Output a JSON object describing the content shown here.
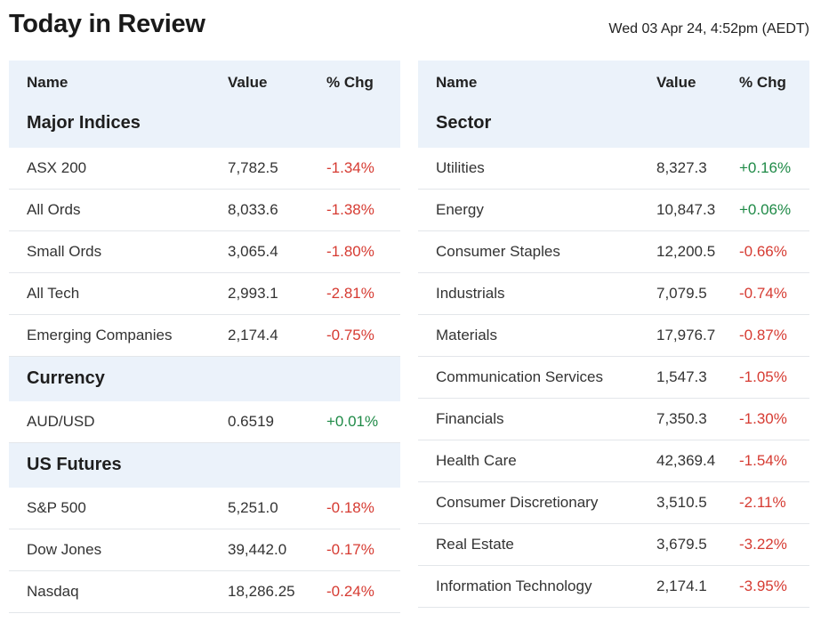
{
  "title": "Today in Review",
  "timestamp": "Wed 03 Apr 24, 4:52pm (AEDT)",
  "left": {
    "headers": {
      "name": "Name",
      "value": "Value",
      "chg": "% Chg"
    },
    "groups": [
      {
        "title": "Major Indices",
        "rows": [
          {
            "name": "ASX 200",
            "value": "7,782.5",
            "chg": "-1.34%"
          },
          {
            "name": "All Ords",
            "value": "8,033.6",
            "chg": "-1.38%"
          },
          {
            "name": "Small Ords",
            "value": "3,065.4",
            "chg": "-1.80%"
          },
          {
            "name": "All Tech",
            "value": "2,993.1",
            "chg": "-2.81%"
          },
          {
            "name": "Emerging Companies",
            "value": "2,174.4",
            "chg": "-0.75%"
          }
        ]
      },
      {
        "title": "Currency",
        "rows": [
          {
            "name": "AUD/USD",
            "value": "0.6519",
            "chg": "+0.01%"
          }
        ]
      },
      {
        "title": "US Futures",
        "rows": [
          {
            "name": "S&P 500",
            "value": "5,251.0",
            "chg": "-0.18%"
          },
          {
            "name": "Dow Jones",
            "value": "39,442.0",
            "chg": "-0.17%"
          },
          {
            "name": "Nasdaq",
            "value": "18,286.25",
            "chg": "-0.24%"
          }
        ]
      }
    ]
  },
  "right": {
    "headers": {
      "name": "Name",
      "value": "Value",
      "chg": "% Chg"
    },
    "groups": [
      {
        "title": "Sector",
        "rows": [
          {
            "name": "Utilities",
            "value": "8,327.3",
            "chg": "+0.16%"
          },
          {
            "name": "Energy",
            "value": "10,847.3",
            "chg": "+0.06%"
          },
          {
            "name": "Consumer Staples",
            "value": "12,200.5",
            "chg": "-0.66%"
          },
          {
            "name": "Industrials",
            "value": "7,079.5",
            "chg": "-0.74%"
          },
          {
            "name": "Materials",
            "value": "17,976.7",
            "chg": "-0.87%"
          },
          {
            "name": "Communication Services",
            "value": "1,547.3",
            "chg": "-1.05%"
          },
          {
            "name": "Financials",
            "value": "7,350.3",
            "chg": "-1.30%"
          },
          {
            "name": "Health Care",
            "value": "42,369.4",
            "chg": "-1.54%"
          },
          {
            "name": "Consumer Discretionary",
            "value": "3,510.5",
            "chg": "-2.11%"
          },
          {
            "name": "Real Estate",
            "value": "3,679.5",
            "chg": "-3.22%"
          },
          {
            "name": "Information Technology",
            "value": "2,174.1",
            "chg": "-3.95%"
          }
        ]
      }
    ]
  },
  "colors": {
    "negative": "#d63b32",
    "positive": "#1f8a47",
    "header_bg": "#ebf2fa"
  }
}
